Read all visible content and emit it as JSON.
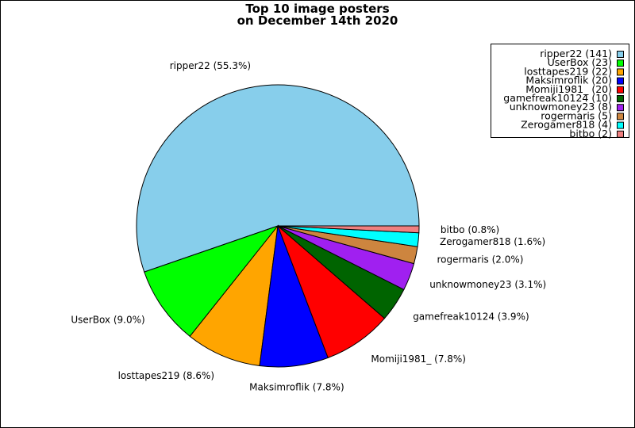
{
  "chart_data": {
    "type": "pie",
    "title": "Top 10 image posters",
    "subtitle": "on December 14th 2020",
    "legend_position": "top-right",
    "slices": [
      {
        "name": "ripper22",
        "value": 141,
        "percent_label": "55.3%",
        "color": "#87ceeb"
      },
      {
        "name": "UserBox",
        "value": 23,
        "percent_label": "9.0%",
        "color": "#00ff00"
      },
      {
        "name": "losttapes219",
        "value": 22,
        "percent_label": "8.6%",
        "color": "#ffa500"
      },
      {
        "name": "Maksimroflik",
        "value": 20,
        "percent_label": "7.8%",
        "color": "#0000ff"
      },
      {
        "name": "Momiji1981_",
        "value": 20,
        "percent_label": "7.8%",
        "color": "#ff0000"
      },
      {
        "name": "gamefreak10124",
        "value": 10,
        "percent_label": "3.9%",
        "color": "#006400"
      },
      {
        "name": "unknowmoney23",
        "value": 8,
        "percent_label": "3.1%",
        "color": "#a020f0"
      },
      {
        "name": "rogermaris",
        "value": 5,
        "percent_label": "2.0%",
        "color": "#cd853f"
      },
      {
        "name": "Zerogamer818",
        "value": 4,
        "percent_label": "1.6%",
        "color": "#00ffff"
      },
      {
        "name": "bitbo",
        "value": 2,
        "percent_label": "0.8%",
        "color": "#f08080"
      }
    ]
  }
}
